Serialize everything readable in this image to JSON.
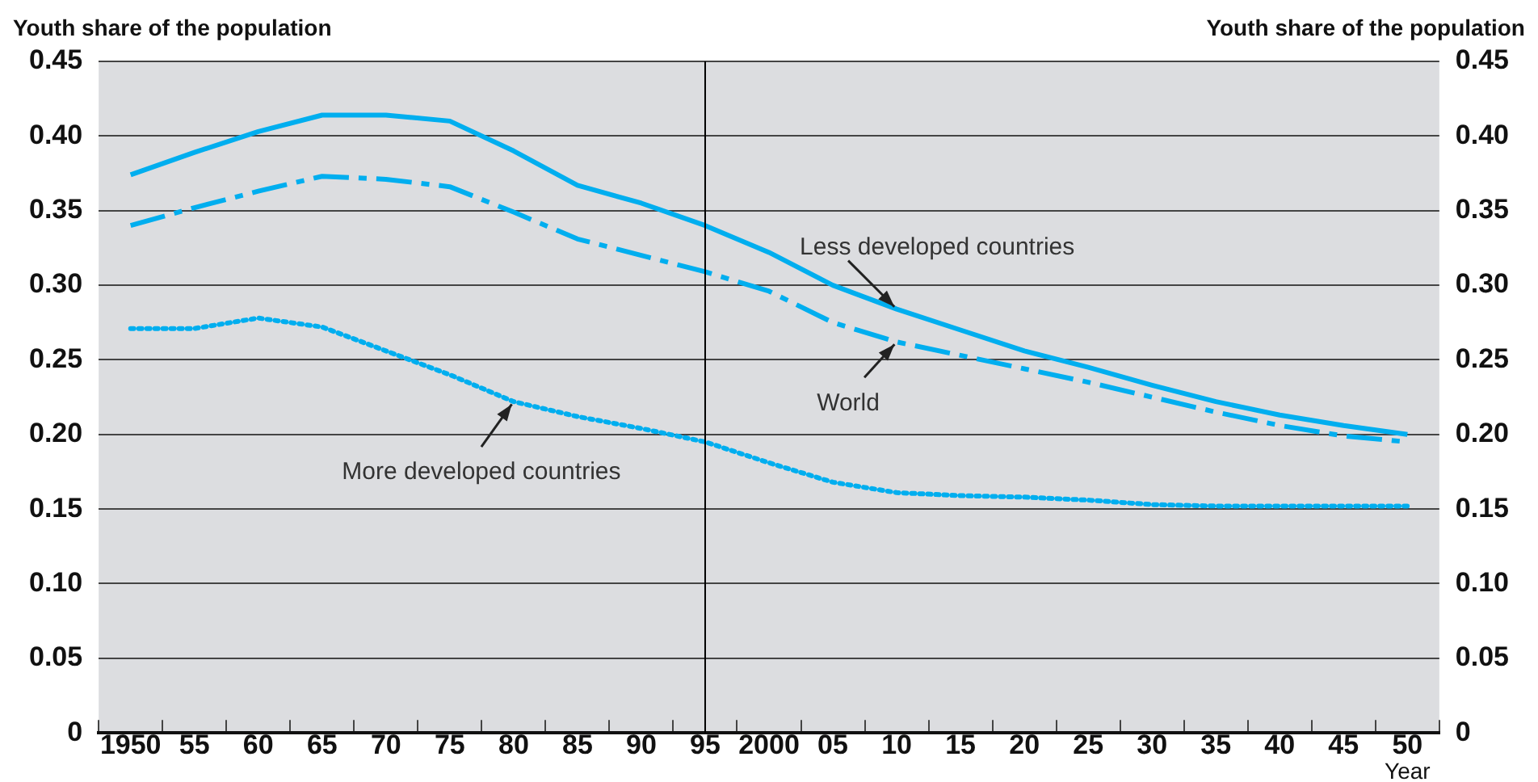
{
  "chart_data": {
    "type": "line",
    "ylabel": "Youth share of the population",
    "y2label": "Youth share of the population",
    "xlabel": "Year",
    "categories": [
      "1950",
      "55",
      "60",
      "65",
      "70",
      "75",
      "80",
      "85",
      "90",
      "95",
      "2000",
      "05",
      "10",
      "15",
      "20",
      "25",
      "30",
      "35",
      "40",
      "45",
      "50"
    ],
    "series": [
      {
        "name": "Less developed countries",
        "color": "#00aeef",
        "line_style": "solid",
        "values": [
          0.374,
          0.389,
          0.403,
          0.414,
          0.414,
          0.41,
          0.39,
          0.367,
          0.355,
          0.34,
          0.322,
          0.3,
          0.284,
          0.27,
          0.256,
          0.245,
          0.233,
          0.222,
          0.213,
          0.206,
          0.2
        ]
      },
      {
        "name": "World",
        "color": "#00aeef",
        "line_style": "dashed",
        "values": [
          0.34,
          0.352,
          0.363,
          0.373,
          0.371,
          0.366,
          0.349,
          0.331,
          0.32,
          0.309,
          0.296,
          0.275,
          0.262,
          0.253,
          0.244,
          0.235,
          0.225,
          0.215,
          0.206,
          0.199,
          0.195
        ]
      },
      {
        "name": "More developed countries",
        "color": "#00aeef",
        "line_style": "dotted",
        "values": [
          0.271,
          0.271,
          0.278,
          0.272,
          0.256,
          0.24,
          0.222,
          0.212,
          0.204,
          0.195,
          0.181,
          0.168,
          0.161,
          0.159,
          0.158,
          0.156,
          0.153,
          0.152,
          0.152,
          0.152,
          0.152
        ]
      }
    ],
    "ylim": [
      0,
      0.45
    ],
    "yticks": [
      0,
      0.05,
      {
        "value": 0.1,
        "label": "0.10"
      },
      0.15,
      {
        "value": 0.2,
        "label": "0.20"
      },
      0.25,
      {
        "value": 0.3,
        "label": "0.30"
      },
      0.35,
      {
        "value": 0.4,
        "label": "0.40"
      },
      0.45
    ],
    "y2lim": [
      0,
      0.45
    ],
    "y2ticks": [
      0,
      0.05,
      {
        "value": 0.1,
        "label": "0.10"
      },
      0.15,
      {
        "value": 0.2,
        "label": "0.20"
      },
      0.25,
      {
        "value": 0.3,
        "label": "0.30"
      },
      0.35,
      {
        "value": 0.4,
        "label": "0.40"
      },
      0.45
    ],
    "ref_lines": [
      {
        "axis": "x",
        "value": "95",
        "color": "#000000"
      }
    ],
    "grid": "y",
    "legend": false,
    "marker": "none"
  }
}
